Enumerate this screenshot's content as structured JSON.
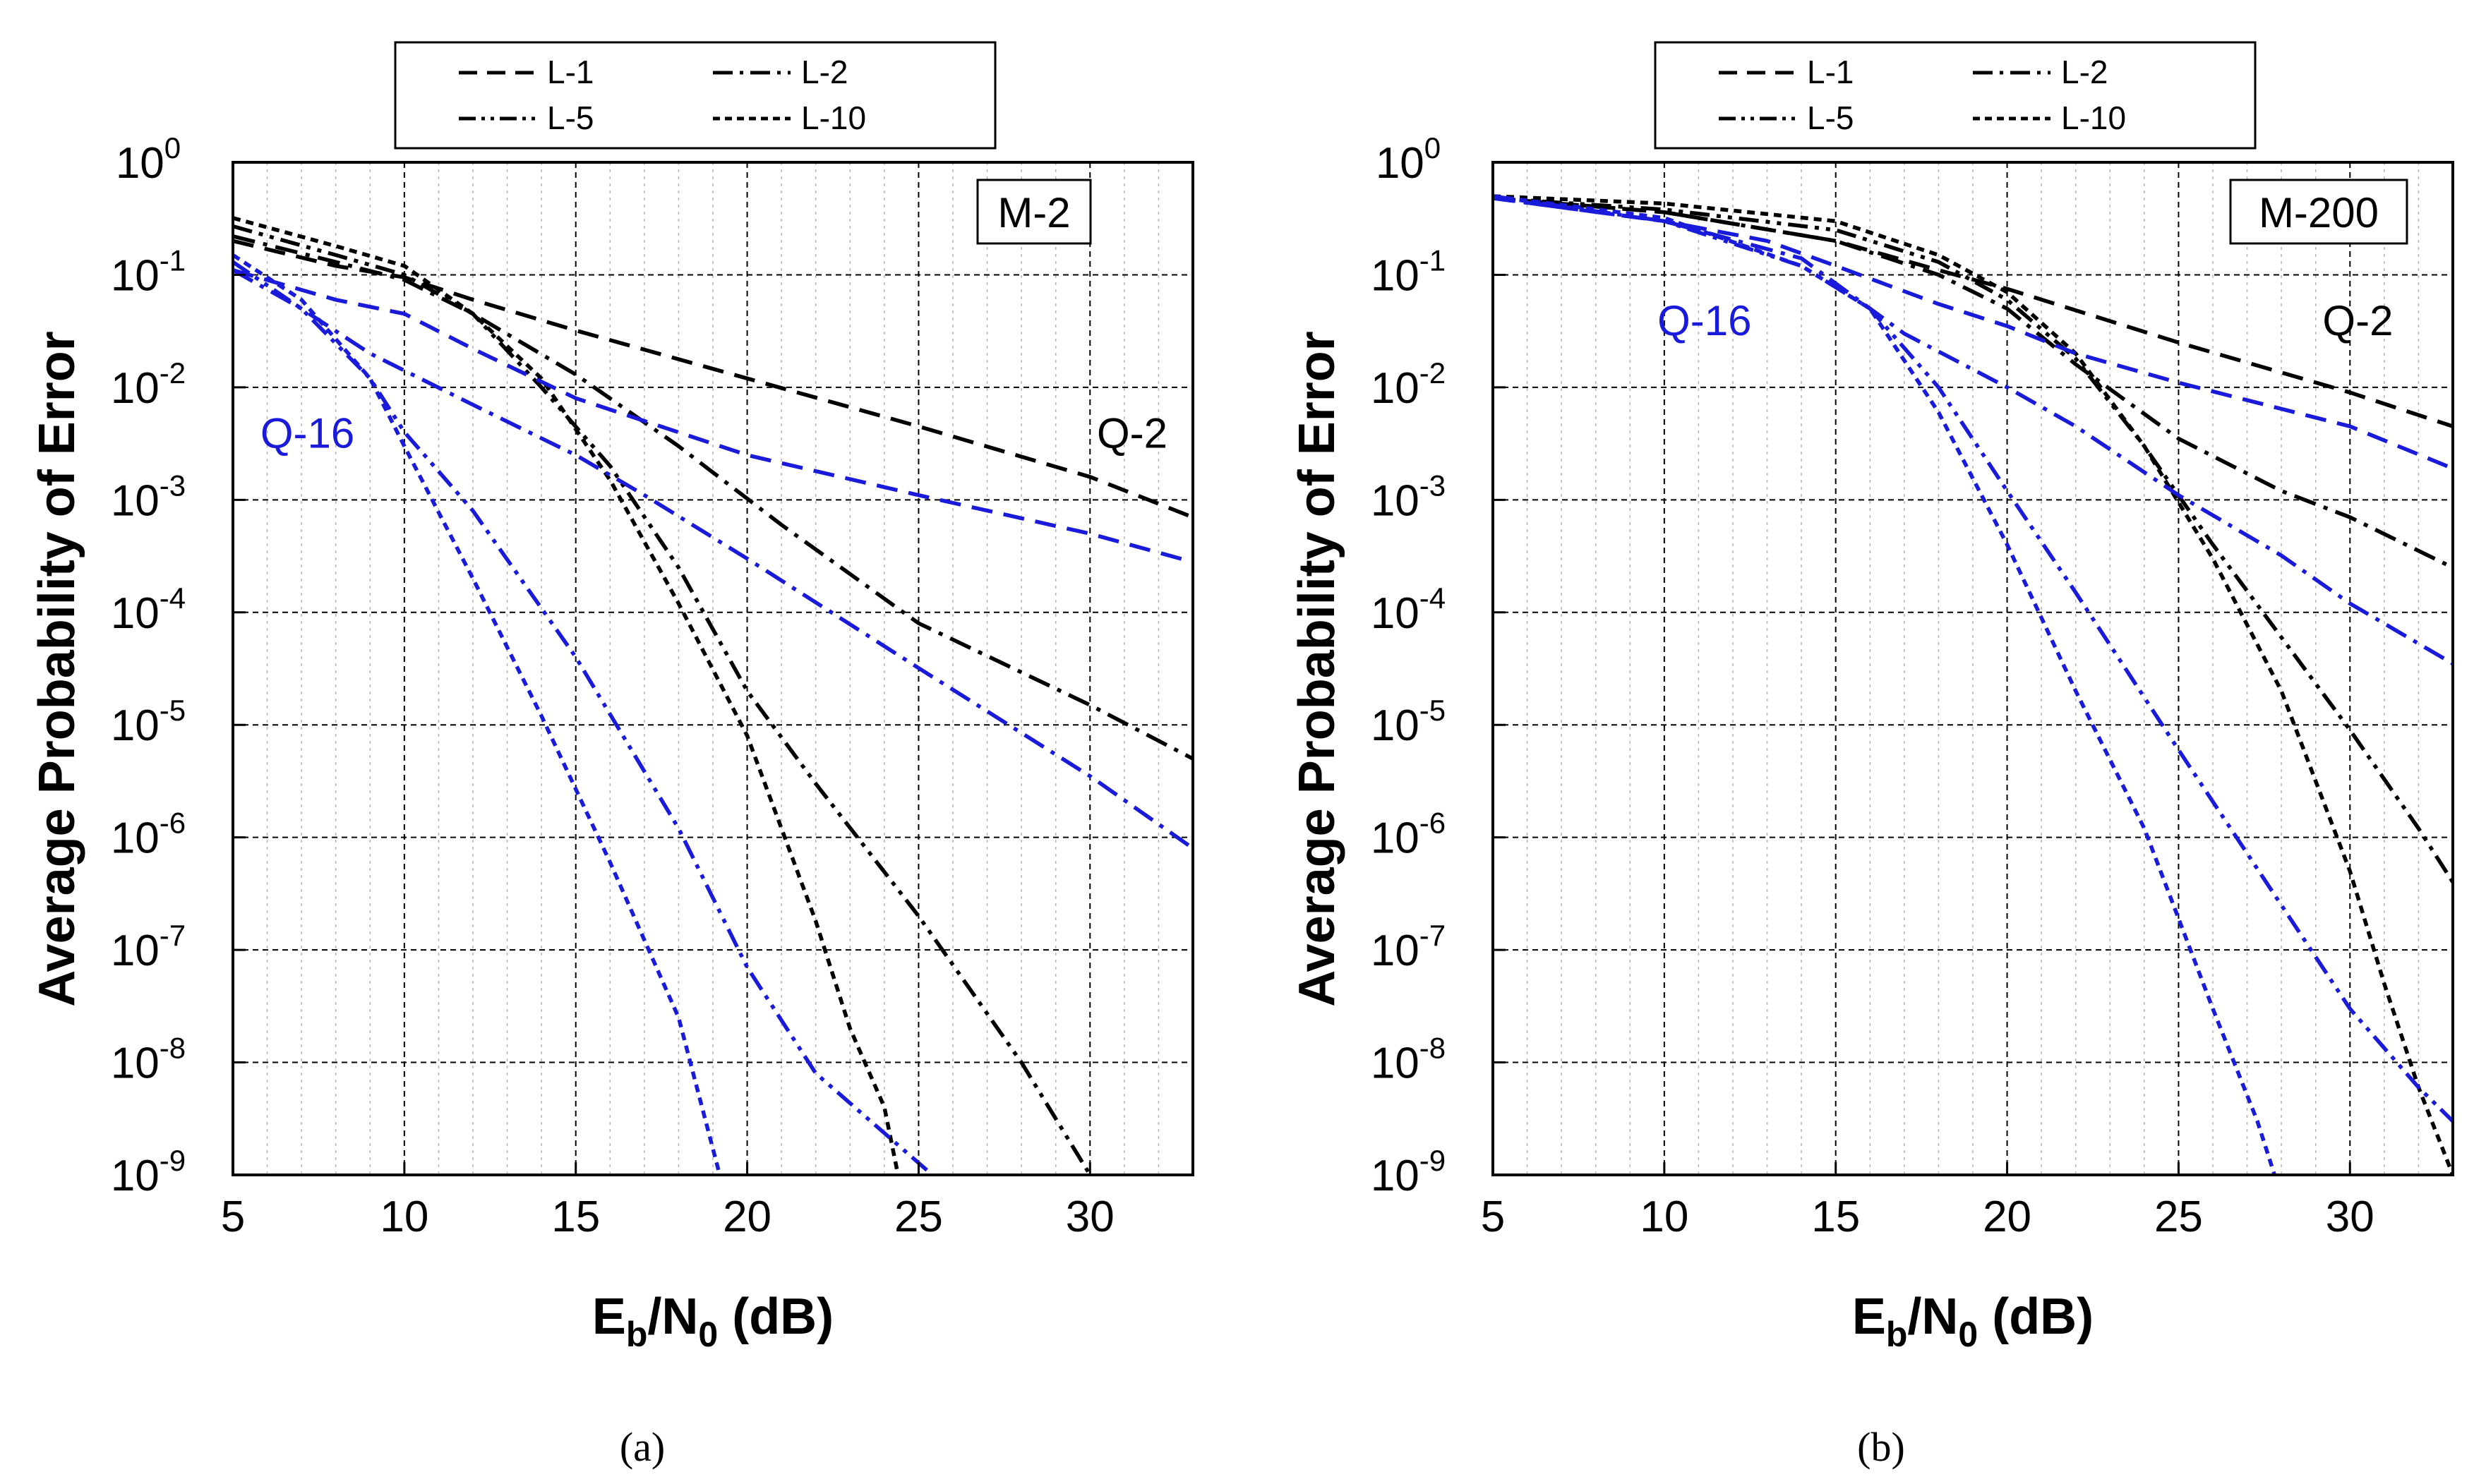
{
  "figure": {
    "panels": [
      {
        "caption": "(a)",
        "inset_label": "M-2",
        "annotations": [
          {
            "text": "Q-16",
            "color": "#1a1adb",
            "x": 5.8,
            "y": 0.004
          },
          {
            "text": "Q-2",
            "color": "#000000",
            "x": 30.2,
            "y": 0.004
          }
        ]
      },
      {
        "caption": "(b)",
        "inset_label": "M-200",
        "annotations": [
          {
            "text": "Q-16",
            "color": "#1a1adb",
            "x": 9.8,
            "y": 0.04
          },
          {
            "text": "Q-2",
            "color": "#000000",
            "x": 29.2,
            "y": 0.04
          }
        ]
      }
    ],
    "legend": [
      {
        "label": "L-1",
        "dash": "long-dash"
      },
      {
        "label": "L-2",
        "dash": "dash-dot"
      },
      {
        "label": "L-5",
        "dash": "dash-dot-dot"
      },
      {
        "label": "L-10",
        "dash": "short-dash"
      }
    ],
    "colors": {
      "q2": "#000000",
      "q16": "#1a1adb"
    }
  },
  "chart_data": [
    {
      "type": "line",
      "title": "M-2",
      "xlabel": "E_b/N_0 (dB)",
      "ylabel": "Average Probability of Error",
      "xlim": [
        5,
        33
      ],
      "ylim_log10": [
        -9,
        0
      ],
      "yscale": "log",
      "x_ticks": [
        5,
        10,
        15,
        20,
        25,
        30
      ],
      "y_ticks_exp": [
        0,
        -1,
        -2,
        -3,
        -4,
        -5,
        -6,
        -7,
        -8,
        -9
      ],
      "grid": true,
      "series": [
        {
          "name": "Q-2 L-1",
          "group": "Q-2",
          "legend": "L-1",
          "color": "#000000",
          "dash": "long-dash",
          "points": [
            [
              5,
              0.2
            ],
            [
              8,
              0.12
            ],
            [
              10,
              0.095
            ],
            [
              12,
              0.06
            ],
            [
              15,
              0.032
            ],
            [
              20,
              0.012
            ],
            [
              25,
              0.0045
            ],
            [
              30,
              0.0016
            ],
            [
              33,
              0.0007
            ]
          ]
        },
        {
          "name": "Q-2 L-2",
          "group": "Q-2",
          "legend": "L-2",
          "color": "#000000",
          "dash": "dash-dot",
          "points": [
            [
              5,
              0.22
            ],
            [
              8,
              0.13
            ],
            [
              10,
              0.09
            ],
            [
              12,
              0.045
            ],
            [
              15,
              0.013
            ],
            [
              18,
              0.003
            ],
            [
              21,
              0.0006
            ],
            [
              25,
              8e-05
            ],
            [
              30,
              1.5e-05
            ],
            [
              33,
              5e-06
            ]
          ]
        },
        {
          "name": "Q-2 L-5",
          "group": "Q-2",
          "legend": "L-5",
          "color": "#000000",
          "dash": "dash-dot-dot",
          "points": [
            [
              5,
              0.27
            ],
            [
              8,
              0.15
            ],
            [
              10,
              0.1
            ],
            [
              12,
              0.045
            ],
            [
              14,
              0.01
            ],
            [
              16,
              0.002
            ],
            [
              18,
              0.00025
            ],
            [
              20,
              2e-05
            ],
            [
              22,
              3e-06
            ],
            [
              25,
              2e-07
            ],
            [
              28,
              1e-08
            ],
            [
              30,
              1e-09
            ]
          ]
        },
        {
          "name": "Q-2 L-10",
          "group": "Q-2",
          "legend": "L-10",
          "color": "#000000",
          "dash": "short-dash",
          "points": [
            [
              5,
              0.32
            ],
            [
              8,
              0.18
            ],
            [
              10,
              0.12
            ],
            [
              12,
              0.045
            ],
            [
              14,
              0.012
            ],
            [
              16,
              0.0015
            ],
            [
              18,
              0.00012
            ],
            [
              20,
              8e-06
            ],
            [
              22,
              1.8e-07
            ],
            [
              23,
              2e-08
            ],
            [
              24,
              4e-09
            ],
            [
              24.4,
              1e-09
            ]
          ]
        },
        {
          "name": "Q-16 L-1",
          "group": "Q-16",
          "legend": "L-1",
          "color": "#1a1adb",
          "dash": "long-dash",
          "points": [
            [
              5,
              0.11
            ],
            [
              8,
              0.06
            ],
            [
              10,
              0.045
            ],
            [
              12,
              0.022
            ],
            [
              15,
              0.008
            ],
            [
              20,
              0.0025
            ],
            [
              25,
              0.0011
            ],
            [
              30,
              0.0005
            ],
            [
              33,
              0.00028
            ]
          ]
        },
        {
          "name": "Q-16 L-2",
          "group": "Q-16",
          "legend": "L-2",
          "color": "#1a1adb",
          "dash": "dash-dot",
          "points": [
            [
              5,
              0.11
            ],
            [
              7,
              0.05
            ],
            [
              9,
              0.02
            ],
            [
              12,
              0.007
            ],
            [
              15,
              0.0025
            ],
            [
              17,
              0.0011
            ],
            [
              20,
              0.0003
            ],
            [
              25,
              3.2e-05
            ],
            [
              30,
              3.5e-06
            ],
            [
              33,
              8e-07
            ]
          ]
        },
        {
          "name": "Q-16 L-5",
          "group": "Q-16",
          "legend": "L-5",
          "color": "#1a1adb",
          "dash": "dash-dot-dot",
          "points": [
            [
              5,
              0.13
            ],
            [
              7,
              0.05
            ],
            [
              9,
              0.012
            ],
            [
              10,
              0.004
            ],
            [
              12,
              0.0008
            ],
            [
              15,
              4e-05
            ],
            [
              18,
              1.2e-06
            ],
            [
              20,
              7e-08
            ],
            [
              22,
              8e-09
            ],
            [
              25.4,
              1e-09
            ]
          ]
        },
        {
          "name": "Q-16 L-10",
          "group": "Q-16",
          "legend": "L-10",
          "color": "#1a1adb",
          "dash": "short-dash",
          "points": [
            [
              5,
              0.15
            ],
            [
              7,
              0.06
            ],
            [
              9,
              0.012
            ],
            [
              10,
              0.003
            ],
            [
              12,
              0.0002
            ],
            [
              14,
              1.2e-05
            ],
            [
              16,
              6e-07
            ],
            [
              18,
              2.5e-08
            ],
            [
              19.2,
              1e-09
            ]
          ]
        }
      ]
    },
    {
      "type": "line",
      "title": "M-200",
      "xlabel": "E_b/N_0 (dB)",
      "ylabel": "Average Probability of Error",
      "xlim": [
        5,
        33
      ],
      "ylim_log10": [
        -9,
        0
      ],
      "yscale": "log",
      "x_ticks": [
        5,
        10,
        15,
        20,
        25,
        30
      ],
      "y_ticks_exp": [
        0,
        -1,
        -2,
        -3,
        -4,
        -5,
        -6,
        -7,
        -8,
        -9
      ],
      "grid": true,
      "series": [
        {
          "name": "Q-2 L-1",
          "group": "Q-2",
          "legend": "L-1",
          "color": "#000000",
          "dash": "long-dash",
          "points": [
            [
              5,
              0.48
            ],
            [
              10,
              0.36
            ],
            [
              15,
              0.2
            ],
            [
              18,
              0.11
            ],
            [
              20,
              0.075
            ],
            [
              25,
              0.025
            ],
            [
              30,
              0.009
            ],
            [
              33,
              0.0045
            ]
          ]
        },
        {
          "name": "Q-2 L-2",
          "group": "Q-2",
          "legend": "L-2",
          "color": "#000000",
          "dash": "dash-dot",
          "points": [
            [
              5,
              0.48
            ],
            [
              10,
              0.36
            ],
            [
              15,
              0.2
            ],
            [
              18,
              0.1
            ],
            [
              20,
              0.05
            ],
            [
              22,
              0.016
            ],
            [
              25,
              0.0035
            ],
            [
              28,
              0.0012
            ],
            [
              30,
              0.0007
            ],
            [
              33,
              0.00025
            ]
          ]
        },
        {
          "name": "Q-2 L-5",
          "group": "Q-2",
          "legend": "L-5",
          "color": "#000000",
          "dash": "dash-dot-dot",
          "points": [
            [
              5,
              0.48
            ],
            [
              10,
              0.38
            ],
            [
              15,
              0.25
            ],
            [
              18,
              0.13
            ],
            [
              20,
              0.06
            ],
            [
              22,
              0.018
            ],
            [
              24,
              0.003
            ],
            [
              26,
              0.0004
            ],
            [
              28,
              6e-05
            ],
            [
              30,
              9e-06
            ],
            [
              32,
              1.2e-06
            ],
            [
              33,
              4e-07
            ]
          ]
        },
        {
          "name": "Q-2 L-10",
          "group": "Q-2",
          "legend": "L-10",
          "color": "#000000",
          "dash": "short-dash",
          "points": [
            [
              5,
              0.5
            ],
            [
              10,
              0.43
            ],
            [
              15,
              0.3
            ],
            [
              18,
              0.15
            ],
            [
              20,
              0.07
            ],
            [
              22,
              0.02
            ],
            [
              24,
              0.003
            ],
            [
              26,
              0.0003
            ],
            [
              28,
              2e-05
            ],
            [
              30,
              5e-07
            ],
            [
              31,
              5e-08
            ],
            [
              32,
              6e-09
            ],
            [
              33,
              1e-09
            ]
          ]
        },
        {
          "name": "Q-16 L-1",
          "group": "Q-16",
          "legend": "L-1",
          "color": "#1a1adb",
          "dash": "long-dash",
          "points": [
            [
              5,
              0.48
            ],
            [
              10,
              0.3
            ],
            [
              13,
              0.2
            ],
            [
              15,
              0.12
            ],
            [
              18,
              0.055
            ],
            [
              20,
              0.035
            ],
            [
              22,
              0.02
            ],
            [
              25,
              0.011
            ],
            [
              30,
              0.0045
            ],
            [
              33,
              0.0019
            ]
          ]
        },
        {
          "name": "Q-16 L-2",
          "group": "Q-16",
          "legend": "L-2",
          "color": "#1a1adb",
          "dash": "dash-dot",
          "points": [
            [
              5,
              0.48
            ],
            [
              10,
              0.3
            ],
            [
              14,
              0.14
            ],
            [
              17,
              0.03
            ],
            [
              20,
              0.01
            ],
            [
              22,
              0.0045
            ],
            [
              25,
              0.0011
            ],
            [
              28,
              0.00032
            ],
            [
              30,
              0.00012
            ],
            [
              33,
              3.5e-05
            ]
          ]
        },
        {
          "name": "Q-16 L-5",
          "group": "Q-16",
          "legend": "L-5",
          "color": "#1a1adb",
          "dash": "dash-dot-dot",
          "points": [
            [
              5,
              0.5
            ],
            [
              10,
              0.3
            ],
            [
              14,
              0.12
            ],
            [
              16,
              0.05
            ],
            [
              18,
              0.01
            ],
            [
              20,
              0.0012
            ],
            [
              22,
              0.00015
            ],
            [
              25,
              6e-06
            ],
            [
              28,
              2.5e-07
            ],
            [
              30,
              3e-08
            ],
            [
              32,
              6e-09
            ],
            [
              33,
              3e-09
            ]
          ]
        },
        {
          "name": "Q-16 L-10",
          "group": "Q-16",
          "legend": "L-10",
          "color": "#1a1adb",
          "dash": "short-dash",
          "points": [
            [
              5,
              0.5
            ],
            [
              10,
              0.32
            ],
            [
              14,
              0.12
            ],
            [
              16,
              0.05
            ],
            [
              18,
              0.006
            ],
            [
              20,
              0.0004
            ],
            [
              22,
              2e-05
            ],
            [
              24,
              1.2e-06
            ],
            [
              26,
              3e-08
            ],
            [
              27.3,
              3e-09
            ],
            [
              27.8,
              1e-09
            ]
          ]
        }
      ]
    }
  ]
}
